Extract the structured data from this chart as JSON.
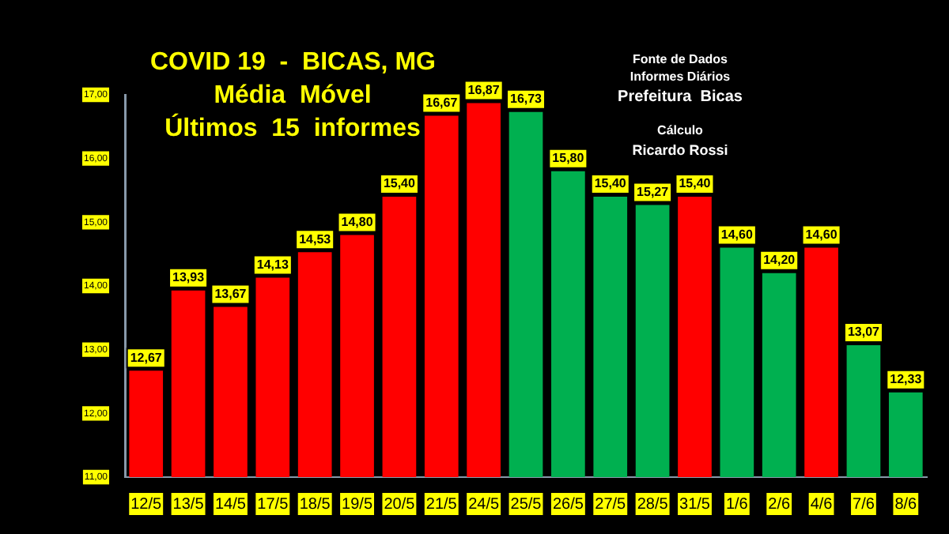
{
  "chart_data": {
    "type": "bar",
    "title": "COVID 19  -  BICAS, MG",
    "subtitle": "Média  Móvel",
    "annotations": [
      "Últimos  15  informes",
      "Fonte de Dados",
      "Informes Diários",
      "Prefeitura  Bicas",
      "Cálculo",
      "Ricardo Rossi"
    ],
    "categories": [
      "12/5",
      "13/5",
      "14/5",
      "17/5",
      "18/5",
      "19/5",
      "20/5",
      "21/5",
      "24/5",
      "25/5",
      "26/5",
      "27/5",
      "28/5",
      "31/5",
      "1/6",
      "2/6",
      "4/6",
      "7/6",
      "8/6"
    ],
    "values": [
      12.67,
      13.93,
      13.67,
      14.13,
      14.53,
      14.8,
      15.4,
      16.67,
      16.87,
      16.73,
      15.8,
      15.4,
      15.27,
      15.4,
      14.6,
      14.2,
      14.6,
      13.07,
      12.33
    ],
    "value_labels": [
      "12,67",
      "13,93",
      "13,67",
      "14,13",
      "14,53",
      "14,80",
      "15,40",
      "16,67",
      "16,87",
      "16,73",
      "15,80",
      "15,40",
      "15,27",
      "15,40",
      "14,60",
      "14,20",
      "14,60",
      "13,07",
      "12,33"
    ],
    "colors": [
      "#ff0000",
      "#ff0000",
      "#ff0000",
      "#ff0000",
      "#ff0000",
      "#ff0000",
      "#ff0000",
      "#ff0000",
      "#ff0000",
      "#00b050",
      "#00b050",
      "#00b050",
      "#00b050",
      "#ff0000",
      "#00b050",
      "#00b050",
      "#ff0000",
      "#00b050",
      "#00b050"
    ],
    "ylim": [
      11,
      17
    ],
    "yticks": [
      {
        "value": 11,
        "label": "11,00"
      },
      {
        "value": 12,
        "label": "12,00"
      },
      {
        "value": 13,
        "label": "13,00"
      },
      {
        "value": 14,
        "label": "14,00"
      },
      {
        "value": 15,
        "label": "15,00"
      },
      {
        "value": 16,
        "label": "16,00"
      },
      {
        "value": 17,
        "label": "17,00"
      }
    ],
    "grid": false,
    "legend": false
  }
}
